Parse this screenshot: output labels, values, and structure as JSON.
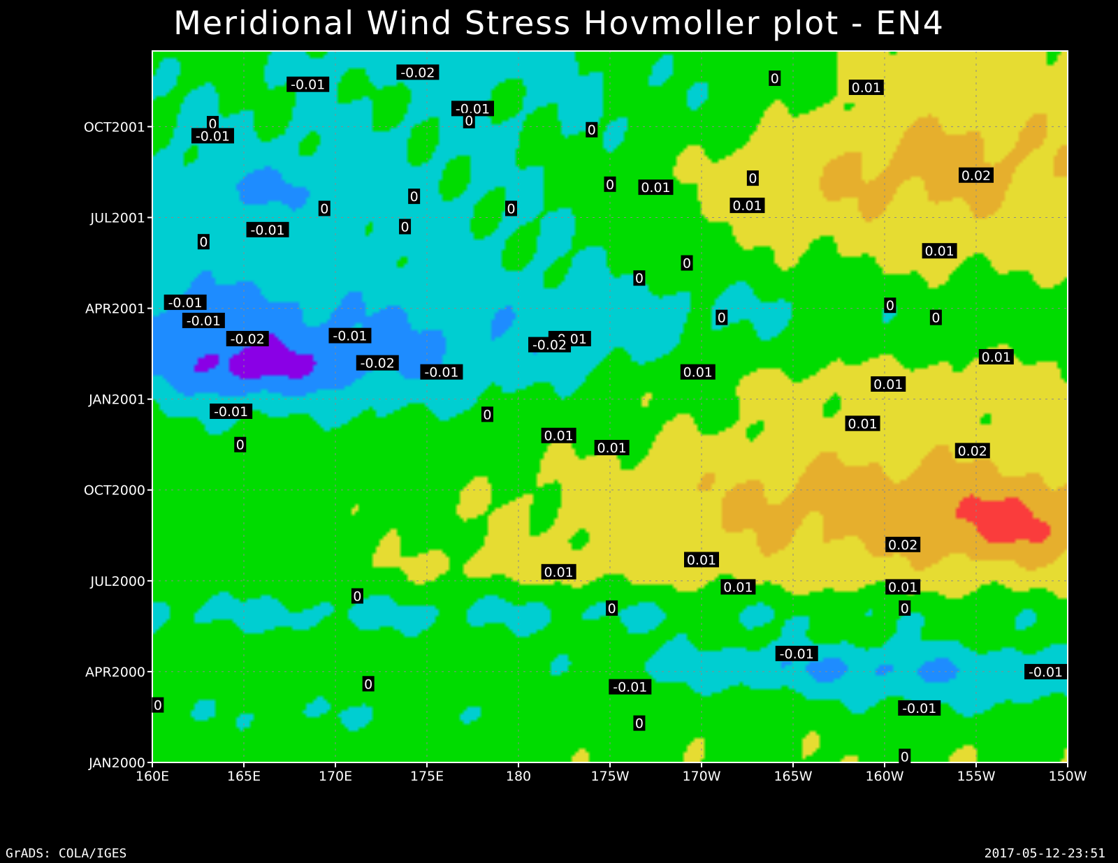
{
  "chart_data": {
    "type": "heatmap",
    "title": "Meridional Wind Stress Hovmoller plot - EN4",
    "xlabel": "",
    "ylabel": "",
    "x_ticks": [
      "160E",
      "165E",
      "170E",
      "175E",
      "180",
      "175W",
      "170W",
      "165W",
      "160W",
      "155W",
      "150W"
    ],
    "y_ticks": [
      "JAN2000",
      "APR2000",
      "JUL2000",
      "OCT2000",
      "JAN2001",
      "APR2001",
      "JUL2001",
      "OCT2001"
    ],
    "x_range": [
      "160E",
      "150W"
    ],
    "y_range": [
      "JAN2000",
      "DEC2001"
    ],
    "grid": true,
    "contour_levels": [
      -0.02,
      -0.01,
      0,
      0.01,
      0.02
    ],
    "colors": {
      "below_-0.02": "#8a00e6",
      "-0.02_to_-0.01": "#1e8cff",
      "-0.01_to_0": "#00ced1",
      "0_to_0.01": "#00dc00",
      "0.01_to_0.02": "#e6dc32",
      "0.02_to_0.03": "#e6af2d",
      "0.03_to_0.04": "#fa3c3c",
      "above_0.04": "#f00082"
    },
    "contour_labels": [
      {
        "text": "-0.01",
        "lon": 168.5,
        "month": 22.4
      },
      {
        "text": "-0.02",
        "lon": 174.5,
        "month": 22.8
      },
      {
        "text": "-0.01",
        "lon": 177.5,
        "month": 21.6
      },
      {
        "text": "0",
        "lon": -166,
        "month": 22.6
      },
      {
        "text": "0.01",
        "lon": -161,
        "month": 22.3
      },
      {
        "text": "0",
        "lon": 163.3,
        "month": 21.1
      },
      {
        "text": "-0.01",
        "lon": 163.3,
        "month": 20.7
      },
      {
        "text": "0",
        "lon": 177.3,
        "month": 21.2
      },
      {
        "text": "0",
        "lon": -176,
        "month": 20.9
      },
      {
        "text": "0.02",
        "lon": -155,
        "month": 19.4
      },
      {
        "text": "0.01",
        "lon": -172.5,
        "month": 19.0
      },
      {
        "text": "0",
        "lon": -175,
        "month": 19.1
      },
      {
        "text": "0",
        "lon": -167.2,
        "month": 19.3
      },
      {
        "text": "0",
        "lon": 174.3,
        "month": 18.7
      },
      {
        "text": "0",
        "lon": 169.4,
        "month": 18.3
      },
      {
        "text": "0",
        "lon": 179.6,
        "month": 18.3
      },
      {
        "text": "0.01",
        "lon": -167.5,
        "month": 18.4
      },
      {
        "text": "-0.01",
        "lon": 166.3,
        "month": 17.6
      },
      {
        "text": "0",
        "lon": 173.8,
        "month": 17.7
      },
      {
        "text": "0",
        "lon": 162.8,
        "month": 17.2
      },
      {
        "text": "0.01",
        "lon": -157,
        "month": 16.9
      },
      {
        "text": "0",
        "lon": -170.8,
        "month": 16.5
      },
      {
        "text": "0",
        "lon": -173.4,
        "month": 16.0
      },
      {
        "text": "-0.01",
        "lon": 161.8,
        "month": 15.2
      },
      {
        "text": "-0.01",
        "lon": 162.8,
        "month": 14.6
      },
      {
        "text": "0",
        "lon": -159.7,
        "month": 15.1
      },
      {
        "text": "0",
        "lon": -157.2,
        "month": 14.7
      },
      {
        "text": "0",
        "lon": -168.9,
        "month": 14.7
      },
      {
        "text": "-0.02",
        "lon": 165.2,
        "month": 14.0
      },
      {
        "text": "-0.01",
        "lon": 170.8,
        "month": 14.1
      },
      {
        "text": "-0.01",
        "lon": -177.2,
        "month": 14.0
      },
      {
        "text": "-0.02",
        "lon": -178.3,
        "month": 13.8
      },
      {
        "text": "-0.02",
        "lon": 172.3,
        "month": 13.2
      },
      {
        "text": "-0.01",
        "lon": 175.8,
        "month": 12.9
      },
      {
        "text": "0.01",
        "lon": -153.9,
        "month": 13.4
      },
      {
        "text": "0.01",
        "lon": -170.2,
        "month": 12.9
      },
      {
        "text": "0.01",
        "lon": -159.8,
        "month": 12.5
      },
      {
        "text": "-0.01",
        "lon": 164.3,
        "month": 11.6
      },
      {
        "text": "0",
        "lon": 178.3,
        "month": 11.5
      },
      {
        "text": "0.01",
        "lon": -161.2,
        "month": 11.2
      },
      {
        "text": "0",
        "lon": 164.8,
        "month": 10.5
      },
      {
        "text": "0.01",
        "lon": -177.8,
        "month": 10.8
      },
      {
        "text": "0.01",
        "lon": -174.9,
        "month": 10.4
      },
      {
        "text": "0.02",
        "lon": -155.2,
        "month": 10.3
      },
      {
        "text": "0.02",
        "lon": -159.0,
        "month": 7.2
      },
      {
        "text": "0.01",
        "lon": -170.0,
        "month": 6.7
      },
      {
        "text": "0.01",
        "lon": -177.8,
        "month": 6.3
      },
      {
        "text": "0.01",
        "lon": -168.0,
        "month": 5.8
      },
      {
        "text": "0.01",
        "lon": -159.0,
        "month": 5.8
      },
      {
        "text": "0",
        "lon": 171.2,
        "month": 5.5
      },
      {
        "text": "0",
        "lon": -174.9,
        "month": 5.1
      },
      {
        "text": "0",
        "lon": -158.9,
        "month": 5.1
      },
      {
        "text": "-0.01",
        "lon": -164.8,
        "month": 3.6
      },
      {
        "text": "-0.01",
        "lon": -151.2,
        "month": 3.0
      },
      {
        "text": "-0.01",
        "lon": -173.9,
        "month": 2.5
      },
      {
        "text": "0",
        "lon": 171.8,
        "month": 2.6
      },
      {
        "text": "-0.01",
        "lon": -158.1,
        "month": 1.8
      },
      {
        "text": "0",
        "lon": 160.3,
        "month": 1.9
      },
      {
        "text": "0",
        "lon": -173.4,
        "month": 1.3
      },
      {
        "text": "0",
        "lon": -158.9,
        "month": 0.2
      }
    ]
  },
  "footer": {
    "left": "GrADS: COLA/IGES",
    "right": "2017-05-12-23:51"
  }
}
